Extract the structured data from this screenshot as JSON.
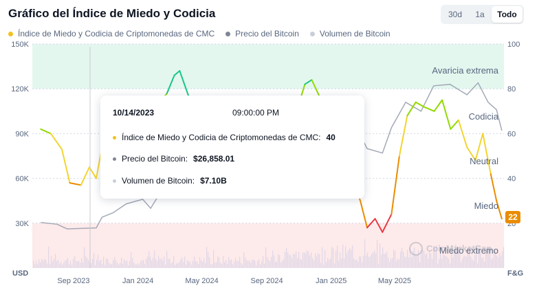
{
  "title": "Gráfico del Índice de Miedo y Codicia",
  "ranges": [
    {
      "label": "30d",
      "active": false
    },
    {
      "label": "1a",
      "active": false
    },
    {
      "label": "Todo",
      "active": true
    }
  ],
  "legend": [
    {
      "label": "Índice de Miedo y Codicia de Criptomonedas de CMC",
      "color": "#f3c120"
    },
    {
      "label": "Precio del Bitcoin",
      "color": "#7e8696"
    },
    {
      "label": "Volumen de Bitcoin",
      "color": "#c9ced9"
    }
  ],
  "zones": [
    "Avaricia extrema",
    "Codicia",
    "Neutral",
    "Miedo",
    "Miedo extremo"
  ],
  "tooltip": {
    "date": "10/14/2023",
    "time": "09:00:00 PM",
    "rows": [
      {
        "label": "Índice de Miedo y Codicia de Criptomonedas de CMC:",
        "value": "40",
        "color": "#f3c120"
      },
      {
        "label": "Precio del Bitcoin:",
        "value": "$26,858.01",
        "color": "#7e8696"
      },
      {
        "label": "Volumen de Bitcoin:",
        "value": "$7.10B",
        "color": "#c9ced9"
      }
    ]
  },
  "current_badge": "22",
  "left_axis_unit": "USD",
  "right_axis_unit": "F&G",
  "watermark": "CoinMarketCap",
  "chart_data": {
    "type": "line",
    "title": "Gráfico del Índice de Miedo y Codicia",
    "x_tick_labels": [
      "Sep 2023",
      "Jan 2024",
      "May 2024",
      "Sep 2024",
      "Jan 2025",
      "May 2025"
    ],
    "y_left_tick_labels": [
      "150K",
      "120K",
      "90K",
      "60K",
      "30K"
    ],
    "y_right_tick_labels": [
      "100",
      "80",
      "60",
      "40",
      "20"
    ],
    "ylim_left": [
      0,
      150000
    ],
    "ylim_right": [
      0,
      100
    ],
    "zones": [
      {
        "label": "Avaricia extrema",
        "from": 80,
        "to": 100,
        "color": "#e3f7ef"
      },
      {
        "label": "Miedo extremo",
        "from": 0,
        "to": 20,
        "color": "#fdeaea"
      }
    ],
    "series": [
      {
        "name": "Índice de Miedo y Codicia de Criptomonedas de CMC",
        "axis": "right",
        "x": [
          "2023-07-01",
          "2023-07-20",
          "2023-08-10",
          "2023-08-25",
          "2023-09-15",
          "2023-10-01",
          "2023-10-14",
          "2023-10-25",
          "2023-11-05",
          "2023-11-20",
          "2023-12-10",
          "2023-12-30",
          "2024-01-15",
          "2024-02-05",
          "2024-02-25",
          "2024-03-10",
          "2024-03-20",
          "2024-04-10",
          "2024-05-01",
          "2024-05-20",
          "2024-06-10",
          "2024-07-01",
          "2024-07-20",
          "2024-08-05",
          "2024-08-25",
          "2024-09-10",
          "2024-09-25",
          "2024-10-10",
          "2024-10-25",
          "2024-11-12",
          "2024-11-25",
          "2024-12-15",
          "2025-01-10",
          "2025-01-25",
          "2025-02-10",
          "2025-02-25",
          "2025-03-10",
          "2025-03-25",
          "2025-04-08",
          "2025-04-25",
          "2025-05-10",
          "2025-05-25",
          "2025-06-10",
          "2025-06-25",
          "2025-07-15",
          "2025-07-30",
          "2025-08-15",
          "2025-08-30",
          "2025-09-15",
          "2025-10-01",
          "2025-10-15",
          "2025-10-30",
          "2025-11-10",
          "2025-11-20"
        ],
        "values": [
          62,
          60,
          53,
          38,
          37,
          45,
          40,
          54,
          70,
          72,
          68,
          75,
          65,
          72,
          78,
          86,
          88,
          74,
          68,
          66,
          54,
          58,
          60,
          42,
          40,
          46,
          50,
          58,
          68,
          82,
          84,
          74,
          62,
          52,
          40,
          30,
          18,
          22,
          16,
          24,
          50,
          68,
          74,
          72,
          70,
          75,
          62,
          66,
          54,
          48,
          60,
          42,
          30,
          22
        ]
      },
      {
        "name": "Precio del Bitcoin",
        "axis": "left",
        "x": [
          "2023-07-01",
          "2023-08-01",
          "2023-08-20",
          "2023-09-15",
          "2023-10-14",
          "2023-10-25",
          "2023-11-15",
          "2023-12-10",
          "2024-01-10",
          "2024-01-25",
          "2024-02-15",
          "2024-03-14",
          "2024-04-10",
          "2024-05-01",
          "2024-05-20",
          "2024-06-15",
          "2024-07-05",
          "2024-07-25",
          "2024-08-05",
          "2024-08-25",
          "2024-09-06",
          "2024-09-30",
          "2024-10-20",
          "2024-11-12",
          "2024-12-05",
          "2024-12-17",
          "2025-01-20",
          "2025-02-15",
          "2025-03-10",
          "2025-04-08",
          "2025-04-25",
          "2025-05-22",
          "2025-06-20",
          "2025-07-14",
          "2025-08-14",
          "2025-09-15",
          "2025-10-06",
          "2025-10-25",
          "2025-11-10",
          "2025-11-20"
        ],
        "values": [
          30500,
          29300,
          26200,
          26500,
          26858,
          34000,
          37000,
          43000,
          46000,
          40000,
          52000,
          72000,
          70000,
          58000,
          69000,
          66000,
          57000,
          67000,
          53000,
          64000,
          54000,
          64000,
          68000,
          88000,
          97000,
          106000,
          104000,
          96000,
          80000,
          77000,
          94000,
          111000,
          105000,
          122000,
          123000,
          116000,
          124000,
          111000,
          106000,
          92000
        ]
      },
      {
        "name": "Volumen de Bitcoin",
        "axis": "left",
        "note": "volume bars along the bottom of the chart",
        "values": [
          7.1
        ]
      }
    ],
    "tooltip_point": {
      "date": "10/14/2023",
      "fg": 40,
      "price": 26858.01,
      "volume": "7.10B"
    },
    "current_fg": 22
  }
}
